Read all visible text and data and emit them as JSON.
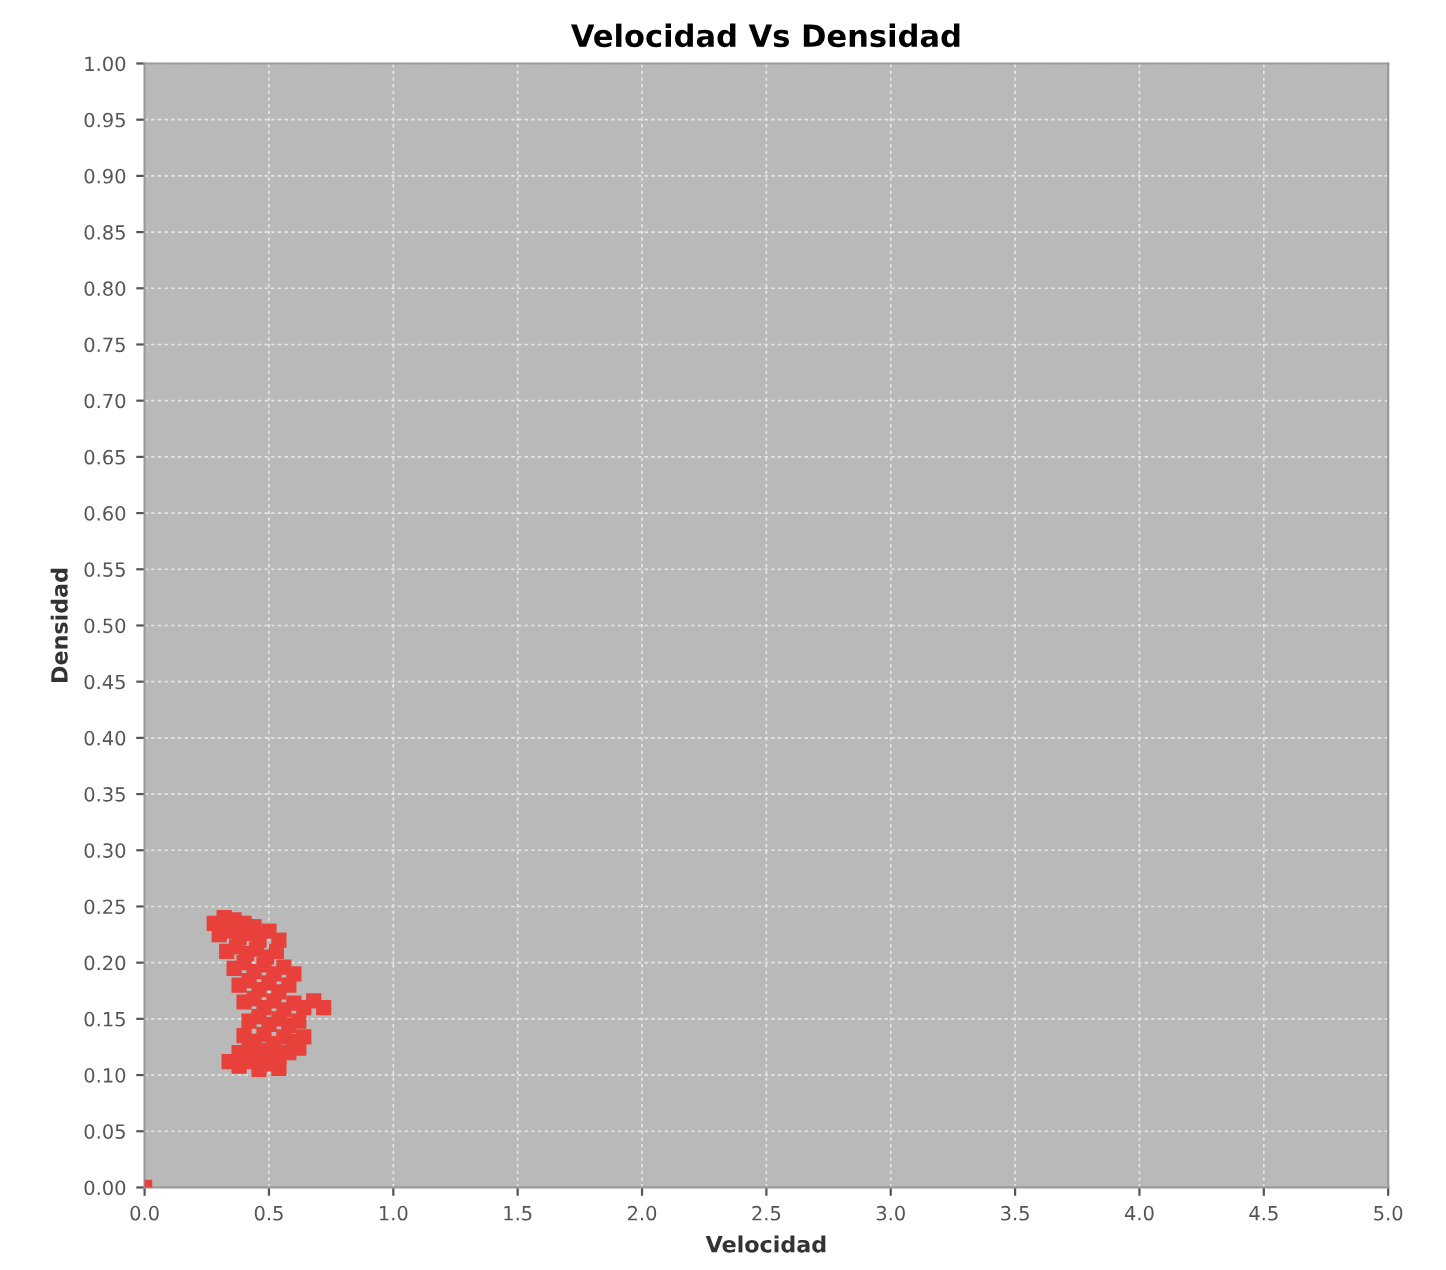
{
  "chart_data": {
    "type": "scatter",
    "title": "Velocidad Vs Densidad",
    "xlabel": "Velocidad",
    "ylabel": "Densidad",
    "xlim": [
      0,
      5
    ],
    "ylim": [
      0,
      1
    ],
    "xticks": [
      {
        "value": 0,
        "label": "0.0"
      },
      0.5,
      {
        "value": 1,
        "label": "1.0"
      },
      1.5,
      {
        "value": 2,
        "label": "2.0"
      },
      2.5,
      {
        "value": 3,
        "label": "3.0"
      },
      3.5,
      {
        "value": 4,
        "label": "4.0"
      },
      4.5,
      {
        "value": 5,
        "label": "5.0"
      }
    ],
    "yticks": [
      {
        "value": 0,
        "label": "0.00"
      },
      0.05,
      {
        "value": 0.1,
        "label": "0.10"
      },
      0.15,
      {
        "value": 0.2,
        "label": "0.20"
      },
      0.25,
      {
        "value": 0.3,
        "label": "0.30"
      },
      0.35,
      {
        "value": 0.4,
        "label": "0.40"
      },
      0.45,
      {
        "value": 0.5,
        "label": "0.50"
      },
      0.55,
      {
        "value": 0.6,
        "label": "0.60"
      },
      0.65,
      {
        "value": 0.7,
        "label": "0.70"
      },
      0.75,
      {
        "value": 0.8,
        "label": "0.80"
      },
      0.85,
      {
        "value": 0.9,
        "label": "0.90"
      },
      0.95,
      {
        "value": 1,
        "label": "1.00"
      }
    ],
    "grid": true,
    "marker": "square",
    "series": [
      {
        "color": "#e8413c",
        "x": [
          0,
          0.28,
          0.32,
          0.36,
          0.4,
          0.44,
          0.3,
          0.34,
          0.38,
          0.42,
          0.46,
          0.5,
          0.54,
          0.33,
          0.37,
          0.41,
          0.45,
          0.49,
          0.53,
          0.36,
          0.4,
          0.44,
          0.48,
          0.52,
          0.56,
          0.6,
          0.38,
          0.42,
          0.46,
          0.5,
          0.54,
          0.58,
          0.4,
          0.44,
          0.48,
          0.52,
          0.56,
          0.6,
          0.64,
          0.68,
          0.72,
          0.42,
          0.46,
          0.5,
          0.54,
          0.58,
          0.62,
          0.4,
          0.44,
          0.48,
          0.52,
          0.56,
          0.6,
          0.64,
          0.38,
          0.42,
          0.46,
          0.5,
          0.54,
          0.58,
          0.62,
          0.34,
          0.38,
          0.42,
          0.46,
          0.5,
          0.54
        ],
        "values": [
          0,
          0.235,
          0.24,
          0.238,
          0.235,
          0.232,
          0.225,
          0.228,
          0.222,
          0.226,
          0.22,
          0.228,
          0.22,
          0.21,
          0.214,
          0.208,
          0.212,
          0.205,
          0.21,
          0.195,
          0.2,
          0.192,
          0.198,
          0.19,
          0.196,
          0.19,
          0.18,
          0.184,
          0.176,
          0.182,
          0.174,
          0.18,
          0.165,
          0.168,
          0.16,
          0.166,
          0.158,
          0.164,
          0.16,
          0.166,
          0.16,
          0.148,
          0.152,
          0.145,
          0.15,
          0.144,
          0.148,
          0.135,
          0.13,
          0.136,
          0.128,
          0.134,
          0.13,
          0.134,
          0.12,
          0.124,
          0.118,
          0.122,
          0.116,
          0.12,
          0.124,
          0.112,
          0.108,
          0.112,
          0.105,
          0.11,
          0.106
        ]
      }
    ]
  }
}
